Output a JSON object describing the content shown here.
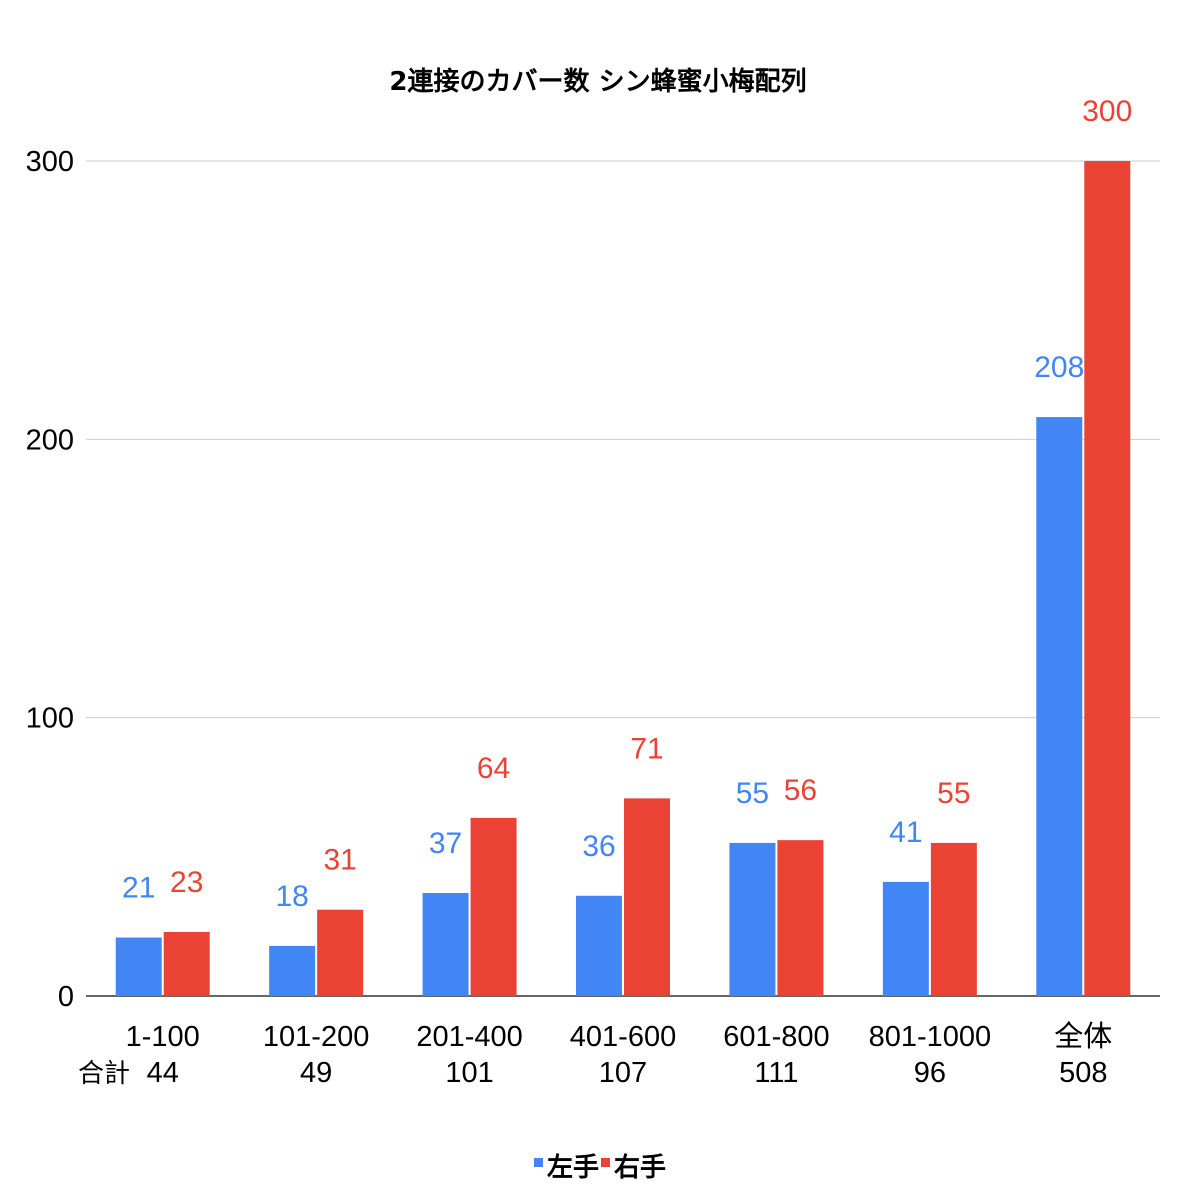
{
  "chart_data": {
    "type": "bar",
    "title": "2連接のカバー数 シン蜂蜜小梅配列",
    "categories": [
      "1-100",
      "101-200",
      "201-400",
      "401-600",
      "601-800",
      "801-1000",
      "全体"
    ],
    "totals_label": "合計",
    "totals": [
      44,
      49,
      101,
      107,
      111,
      96,
      508
    ],
    "series": [
      {
        "name": "左手",
        "color": "#4285f4",
        "values": [
          21,
          18,
          37,
          36,
          55,
          41,
          208
        ]
      },
      {
        "name": "右手",
        "color": "#ea4335",
        "values": [
          23,
          31,
          64,
          71,
          56,
          55,
          300
        ]
      }
    ],
    "yticks": [
      0,
      100,
      200,
      300
    ],
    "ylim": [
      0,
      300
    ],
    "xlabel": "",
    "ylabel": "",
    "grid": true,
    "legend": "bottom"
  }
}
